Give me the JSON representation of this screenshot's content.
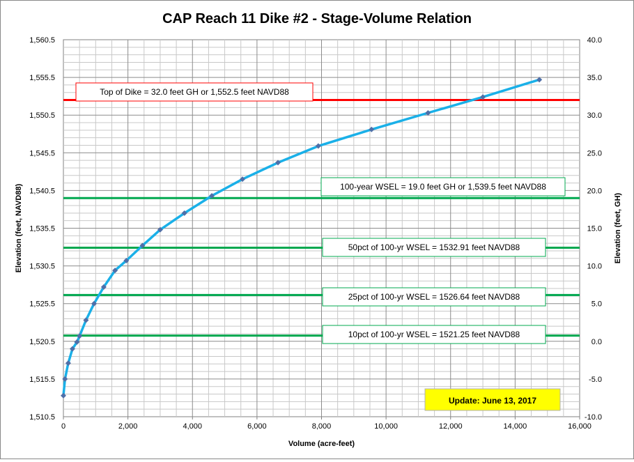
{
  "chart_data": {
    "type": "line",
    "title": "CAP Reach 11 Dike #2 - Stage-Volume Relation",
    "xlabel": "Volume (acre-feet)",
    "ylabel": "Elevation  (feet, NAVD88)",
    "y2label": "Elevation  (feet, GH)",
    "xlim": [
      0,
      16000
    ],
    "ylim": [
      1510.5,
      1560.5
    ],
    "y2lim": [
      -10.0,
      40.0
    ],
    "x_ticks": [
      "0",
      "2,000",
      "4,000",
      "6,000",
      "8,000",
      "10,000",
      "12,000",
      "14,000",
      "16,000"
    ],
    "y_ticks": [
      "1,510.5",
      "1,515.5",
      "1,520.5",
      "1,525.5",
      "1,530.5",
      "1,535.5",
      "1,540.5",
      "1,545.5",
      "1,550.5",
      "1,555.5",
      "1,560.5"
    ],
    "y2_ticks": [
      "-10.0",
      "-5.0",
      "0.0",
      "5.0",
      "10.0",
      "15.0",
      "20.0",
      "25.0",
      "30.0",
      "35.0",
      "40.0"
    ],
    "grid": true,
    "series": [
      {
        "x": [
          0,
          50,
          150,
          280,
          420,
          500,
          700,
          950,
          1250,
          1600,
          1950,
          2450,
          3000,
          3750,
          4600,
          5550,
          6650,
          7900,
          9550,
          11300,
          13000,
          14750
        ],
        "y": [
          1513.3,
          1515.5,
          1517.6,
          1519.5,
          1520.4,
          1521.2,
          1523.3,
          1525.5,
          1527.7,
          1529.9,
          1531.2,
          1533.2,
          1535.3,
          1537.5,
          1539.8,
          1542.0,
          1544.2,
          1546.4,
          1548.6,
          1550.8,
          1552.9,
          1555.2
        ],
        "color": "#1ab0e8",
        "marker_color": "#4f6fa8"
      }
    ],
    "reference_lines": [
      {
        "elevation": 1552.5,
        "color": "#ff0000",
        "label": "Top of Dike = 32.0  feet GH or 1,552.5  feet NAVD88",
        "label_color": "#c00000"
      },
      {
        "elevation": 1539.5,
        "color": "#00a84f",
        "label": "100-year WSEL = 19.0  feet GH or 1,539.5  feet NAVD88",
        "label_color": "#000000"
      },
      {
        "elevation": 1532.91,
        "color": "#00a84f",
        "label": "50pct of 100-yr WSEL = 1532.91  feet NAVD88",
        "label_color": "#000000"
      },
      {
        "elevation": 1526.64,
        "color": "#00a84f",
        "label": "25pct of 100-yr WSEL = 1526.64  feet NAVD88",
        "label_color": "#000000"
      },
      {
        "elevation": 1521.25,
        "color": "#00a84f",
        "label": "10pct of 100-yr WSEL = 1521.25  feet NAVD88",
        "label_color": "#000000"
      }
    ],
    "annotations": [
      {
        "text": "Update: June 13, 2017",
        "background": "#ffff00"
      }
    ]
  }
}
